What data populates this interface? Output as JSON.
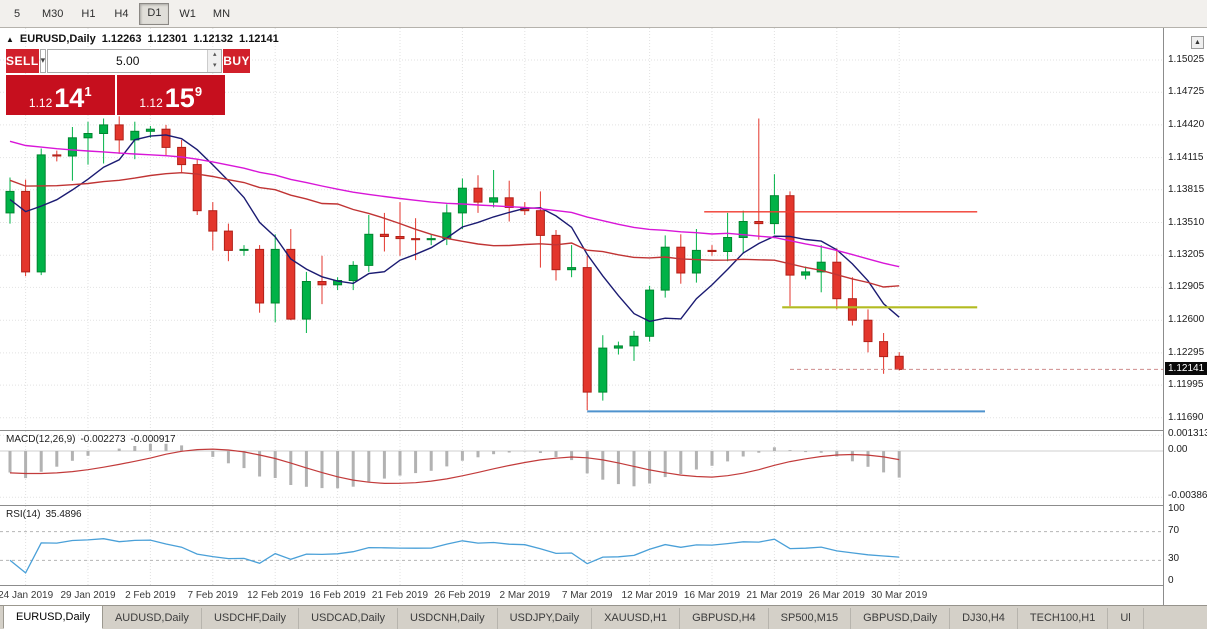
{
  "toolbar": {
    "timeframes": [
      {
        "label": "5",
        "active": false
      },
      {
        "label": "M30",
        "active": false
      },
      {
        "label": "H1",
        "active": false
      },
      {
        "label": "H4",
        "active": false
      },
      {
        "label": "D1",
        "active": true
      },
      {
        "label": "W1",
        "active": false
      },
      {
        "label": "MN",
        "active": false
      }
    ]
  },
  "chart_header": {
    "collapse_icon": "▲",
    "symbol": "EURUSD,Daily",
    "open": "1.12263",
    "high": "1.12301",
    "low": "1.12132",
    "close": "1.12141"
  },
  "trade_panel": {
    "sell_label": "SELL",
    "buy_label": "BUY",
    "volume": "5.00",
    "sell_price": {
      "prefix": "1.12",
      "big": "14",
      "sup": "1"
    },
    "buy_price": {
      "prefix": "1.12",
      "big": "15",
      "sup": "9"
    }
  },
  "chart_data": [
    {
      "type": "candlestick",
      "symbol": "EURUSD",
      "timeframe": "Daily",
      "up_color": "#00b247",
      "down_color": "#e3362c",
      "up_border": "#00862f",
      "down_border": "#b02018",
      "ylim": [
        1.1158,
        1.1532
      ],
      "price_scale": {
        "ticks": [
          "1.15025",
          "1.14725",
          "1.14420",
          "1.14115",
          "1.13815",
          "1.13510",
          "1.13205",
          "1.12905",
          "1.12600",
          "1.12295",
          "1.11995",
          "1.11690"
        ],
        "current": "1.12141"
      },
      "current_price": 1.12141,
      "x_labels": [
        {
          "index": 1,
          "text": "24 Jan 2019"
        },
        {
          "index": 5,
          "text": "29 Jan 2019"
        },
        {
          "index": 9,
          "text": "2 Feb 2019"
        },
        {
          "index": 13,
          "text": "7 Feb 2019"
        },
        {
          "index": 17,
          "text": "12 Feb 2019"
        },
        {
          "index": 21,
          "text": "16 Feb 2019"
        },
        {
          "index": 25,
          "text": "21 Feb 2019"
        },
        {
          "index": 29,
          "text": "26 Feb 2019"
        },
        {
          "index": 33,
          "text": "2 Mar 2019"
        },
        {
          "index": 37,
          "text": "7 Mar 2019"
        },
        {
          "index": 41,
          "text": "12 Mar 2019"
        },
        {
          "index": 45,
          "text": "16 Mar 2019"
        },
        {
          "index": 49,
          "text": "21 Mar 2019"
        },
        {
          "index": 53,
          "text": "26 Mar 2019"
        },
        {
          "index": 57,
          "text": "30 Mar 2019"
        }
      ],
      "candles": [
        [
          1.136,
          1.1393,
          1.135,
          1.138
        ],
        [
          1.138,
          1.1391,
          1.1301,
          1.1305
        ],
        [
          1.1305,
          1.142,
          1.1302,
          1.1414
        ],
        [
          1.1414,
          1.1418,
          1.1408,
          1.1413
        ],
        [
          1.1413,
          1.144,
          1.139,
          1.143
        ],
        [
          1.143,
          1.1445,
          1.1405,
          1.1434
        ],
        [
          1.1434,
          1.1448,
          1.1406,
          1.1442
        ],
        [
          1.1442,
          1.145,
          1.1415,
          1.1428
        ],
        [
          1.1428,
          1.1445,
          1.141,
          1.1436
        ],
        [
          1.1436,
          1.1441,
          1.143,
          1.1438
        ],
        [
          1.1438,
          1.1442,
          1.1413,
          1.1421
        ],
        [
          1.1421,
          1.1428,
          1.1398,
          1.1405
        ],
        [
          1.1405,
          1.141,
          1.1358,
          1.1362
        ],
        [
          1.1362,
          1.137,
          1.1325,
          1.1343
        ],
        [
          1.1343,
          1.135,
          1.1315,
          1.1325
        ],
        [
          1.1325,
          1.133,
          1.132,
          1.1326
        ],
        [
          1.1326,
          1.133,
          1.1267,
          1.1276
        ],
        [
          1.1276,
          1.134,
          1.1258,
          1.1326
        ],
        [
          1.1326,
          1.1345,
          1.126,
          1.1261
        ],
        [
          1.1261,
          1.1305,
          1.1248,
          1.1296
        ],
        [
          1.1296,
          1.132,
          1.1275,
          1.1293
        ],
        [
          1.1293,
          1.13,
          1.1288,
          1.1297
        ],
        [
          1.1297,
          1.1315,
          1.1288,
          1.1311
        ],
        [
          1.1311,
          1.1358,
          1.1305,
          1.134
        ],
        [
          1.134,
          1.136,
          1.1324,
          1.1338
        ],
        [
          1.1338,
          1.137,
          1.132,
          1.1336
        ],
        [
          1.1336,
          1.1355,
          1.1316,
          1.1335
        ],
        [
          1.1335,
          1.134,
          1.133,
          1.1336
        ],
        [
          1.1336,
          1.1368,
          1.133,
          1.136
        ],
        [
          1.136,
          1.1392,
          1.1345,
          1.1383
        ],
        [
          1.1383,
          1.1395,
          1.136,
          1.137
        ],
        [
          1.137,
          1.14,
          1.1365,
          1.1374
        ],
        [
          1.1374,
          1.139,
          1.1352,
          1.1365
        ],
        [
          1.1365,
          1.137,
          1.1358,
          1.1362
        ],
        [
          1.1362,
          1.138,
          1.1309,
          1.1339
        ],
        [
          1.1339,
          1.1344,
          1.1297,
          1.1307
        ],
        [
          1.1307,
          1.133,
          1.13,
          1.1309
        ],
        [
          1.1309,
          1.132,
          1.1176,
          1.1193
        ],
        [
          1.1193,
          1.1246,
          1.1185,
          1.1234
        ],
        [
          1.1234,
          1.124,
          1.1228,
          1.1236
        ],
        [
          1.1236,
          1.125,
          1.1222,
          1.1245
        ],
        [
          1.1245,
          1.1292,
          1.124,
          1.1288
        ],
        [
          1.1288,
          1.1339,
          1.1281,
          1.1328
        ],
        [
          1.1328,
          1.134,
          1.1294,
          1.1304
        ],
        [
          1.1304,
          1.1345,
          1.1295,
          1.1325
        ],
        [
          1.1325,
          1.133,
          1.132,
          1.1324
        ],
        [
          1.1324,
          1.136,
          1.1315,
          1.1337
        ],
        [
          1.1337,
          1.1362,
          1.1322,
          1.1352
        ],
        [
          1.1352,
          1.1448,
          1.1335,
          1.135
        ],
        [
          1.135,
          1.1396,
          1.134,
          1.1376
        ],
        [
          1.1376,
          1.138,
          1.1273,
          1.1302
        ],
        [
          1.1302,
          1.131,
          1.1298,
          1.1305
        ],
        [
          1.1305,
          1.133,
          1.1286,
          1.1314
        ],
        [
          1.1314,
          1.1327,
          1.127,
          1.128
        ],
        [
          1.128,
          1.13,
          1.1255,
          1.126
        ],
        [
          1.126,
          1.127,
          1.123,
          1.124
        ],
        [
          1.124,
          1.1248,
          1.121,
          1.1226
        ],
        [
          1.12263,
          1.12301,
          1.12132,
          1.12141
        ]
      ],
      "moving_averages": [
        {
          "name": "fast",
          "period": 7,
          "color": "#1b1b72"
        },
        {
          "name": "medium",
          "period": 20,
          "color": "#c03434"
        },
        {
          "name": "slow",
          "period": 45,
          "color": "#d816d8"
        }
      ],
      "hlines": [
        {
          "name": "resistance-red-line",
          "price": 1.1361,
          "from_index": 44.5,
          "to_index": 62,
          "color": "#f1392e",
          "width": 1.4
        },
        {
          "name": "level-olive-line",
          "price": 1.1272,
          "from_index": 49.5,
          "to_index": 62,
          "color": "#b3bb21",
          "width": 2.2
        },
        {
          "name": "support-blue-line",
          "price": 1.1175,
          "from_index": 37,
          "to_index": 62.5,
          "color": "#4f93ce",
          "width": 2
        }
      ]
    },
    {
      "type": "macd",
      "name": "MACD(12,26,9)",
      "value_main": "-0.002273",
      "value_signal": "-0.000917",
      "params": [
        12,
        26,
        9
      ],
      "histogram_color": "#b2b2b2",
      "signal_color": "#c23b3b",
      "axis_labels": [
        {
          "text": "0.001313",
          "value": 0.001313
        },
        {
          "text": "0.00",
          "value": 0
        },
        {
          "text": "-0.003862",
          "value": -0.003862
        }
      ]
    },
    {
      "type": "rsi",
      "name": "RSI(14)",
      "value": "35.4896",
      "period": 14,
      "line_color": "#4aa0d8",
      "levels": [
        70,
        30
      ],
      "axis_labels": [
        {
          "text": "100",
          "value": 100
        },
        {
          "text": "70",
          "value": 70
        },
        {
          "text": "30",
          "value": 30
        },
        {
          "text": "0",
          "value": 0
        }
      ]
    }
  ],
  "tabs": [
    {
      "label": "EURUSD,Daily",
      "active": true
    },
    {
      "label": "AUDUSD,Daily",
      "active": false
    },
    {
      "label": "USDCHF,Daily",
      "active": false
    },
    {
      "label": "USDCAD,Daily",
      "active": false
    },
    {
      "label": "USDCNH,Daily",
      "active": false
    },
    {
      "label": "USDJPY,Daily",
      "active": false
    },
    {
      "label": "XAUUSD,H1",
      "active": false
    },
    {
      "label": "GBPUSD,H4",
      "active": false
    },
    {
      "label": "SP500,M15",
      "active": false
    },
    {
      "label": "GBPUSD,Daily",
      "active": false
    },
    {
      "label": "DJ30,H4",
      "active": false
    },
    {
      "label": "TECH100,H1",
      "active": false
    },
    {
      "label": "Ul",
      "active": false
    }
  ]
}
